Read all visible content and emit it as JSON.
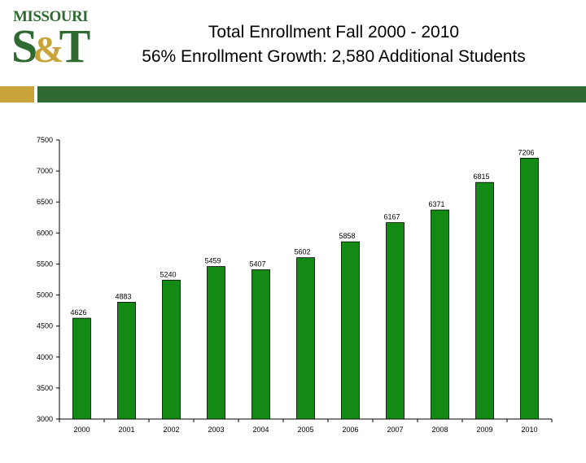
{
  "header": {
    "logo": {
      "wordmark": "MISSOURI",
      "mark_left": "S",
      "mark_amp": "&",
      "mark_right": "T"
    },
    "title": "Total Enrollment Fall 2000 - 2010",
    "subtitle": "56% Enrollment Growth: 2,580 Additional Students"
  },
  "colors": {
    "bar": "#138a13",
    "brand_green": "#2f6a31",
    "brand_gold": "#c8a43a"
  },
  "chart_data": {
    "type": "bar",
    "title": "Total Enrollment Fall 2000 - 2010",
    "subtitle": "56% Enrollment Growth: 2,580 Additional Students",
    "categories": [
      "2000",
      "2001",
      "2002",
      "2003",
      "2004",
      "2005",
      "2006",
      "2007",
      "2008",
      "2009",
      "2010"
    ],
    "values": [
      4626,
      4883,
      5240,
      5459,
      5407,
      5602,
      5858,
      6167,
      6371,
      6815,
      7206
    ],
    "data_labels": [
      "4626",
      "4883",
      "5240",
      "5459",
      "5407",
      "5602",
      "5858",
      "6167",
      "6371",
      "6815",
      "7206"
    ],
    "ylim": [
      3000,
      7500
    ],
    "yticks": [
      3000,
      3500,
      4000,
      4500,
      5000,
      5500,
      6000,
      6500,
      7000,
      7500
    ],
    "ytick_labels": [
      "3000",
      "3500",
      "4000",
      "4500",
      "5000",
      "5500",
      "6000",
      "6500",
      "7000",
      "7500"
    ],
    "xlabel": "",
    "ylabel": "",
    "grid": false,
    "legend": "none"
  }
}
